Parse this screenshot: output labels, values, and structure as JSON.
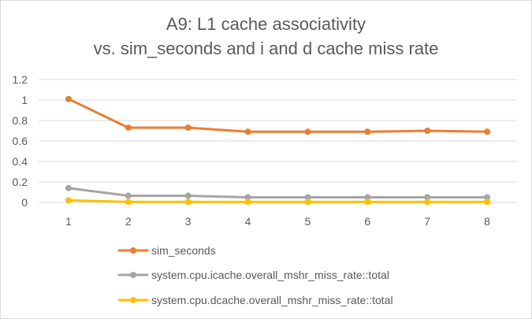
{
  "chart_data": {
    "type": "line",
    "title_line1": "A9: L1 cache associativity",
    "title_line2": "vs. sim_seconds and i and d cache miss rate",
    "xlabel": "",
    "ylabel": "",
    "categories": [
      "1",
      "2",
      "3",
      "4",
      "5",
      "6",
      "7",
      "8"
    ],
    "y_ticks": [
      "0",
      "0.2",
      "0.4",
      "0.6",
      "0.8",
      "1",
      "1.2"
    ],
    "ylim": [
      0,
      1.2
    ],
    "grid": true,
    "legend_position": "bottom",
    "series": [
      {
        "name": "sim_seconds",
        "color": "#ED7D31",
        "values": [
          1.01,
          0.73,
          0.73,
          0.69,
          0.69,
          0.69,
          0.7,
          0.69
        ]
      },
      {
        "name": "system.cpu.icache.overall_mshr_miss_rate::total",
        "color": "#A5A5A5",
        "values": [
          0.14,
          0.065,
          0.065,
          0.05,
          0.05,
          0.05,
          0.05,
          0.05
        ]
      },
      {
        "name": "system.cpu.dcache.overall_mshr_miss_rate::total",
        "color": "#FFC000",
        "values": [
          0.02,
          0.005,
          0.005,
          0.005,
          0.005,
          0.005,
          0.005,
          0.005
        ]
      }
    ]
  }
}
